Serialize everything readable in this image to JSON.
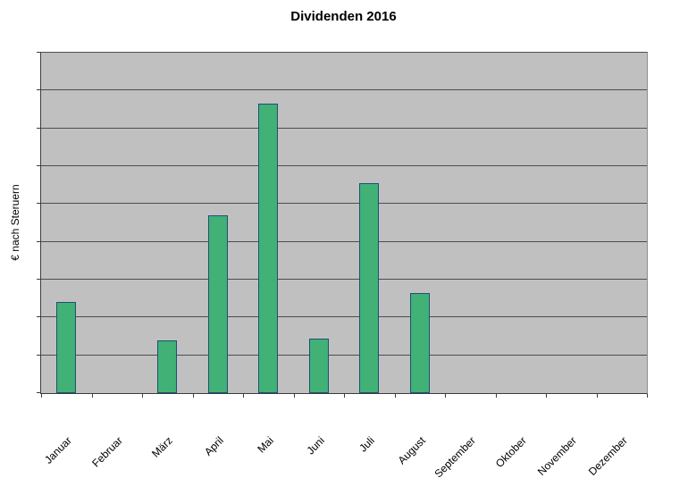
{
  "chart_data": {
    "type": "bar",
    "title": "Dividenden 2016",
    "ylabel": "€ nach Steruern",
    "xlabel": "",
    "categories": [
      "Januar",
      "Februar",
      "März",
      "April",
      "Mai",
      "Juni",
      "Juli",
      "August",
      "September",
      "Oktober",
      "November",
      "Dezember"
    ],
    "values": [
      2.4,
      0,
      1.4,
      4.7,
      7.65,
      1.45,
      5.55,
      2.65,
      0,
      0,
      0,
      0
    ],
    "ylim": [
      0,
      9
    ],
    "gridline_interval": 1,
    "y_tick_labels_visible": false,
    "grid": "horizontal",
    "legend_position": "none",
    "colors": {
      "bar_fill": "#41b176",
      "bar_border": "#1f4e79",
      "plot_background": "#c0c0c0",
      "gridline": "#4d4d4d",
      "axis": "#3c3c3c",
      "page_background": "#ffffff",
      "text": "#000000"
    }
  }
}
